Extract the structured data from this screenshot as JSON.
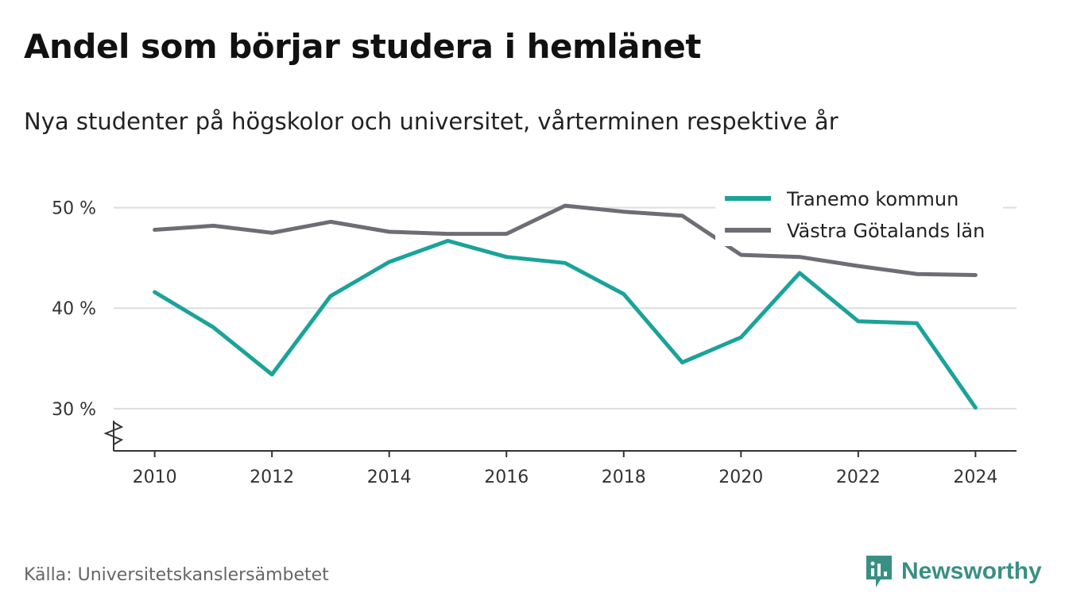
{
  "title": "Andel som börjar studera i hemlänet",
  "subtitle": "Nya studenter på högskolor och universitet, vårterminen respektive år",
  "source": "Källa: Universitetskanslersämbetet",
  "brand": "Newsworthy",
  "colors": {
    "series1": "#1aa39a",
    "series2": "#6e6d75",
    "grid": "#dddddd",
    "axis": "#333333",
    "brand": "#3a8f84"
  },
  "chart_data": {
    "type": "line",
    "x": [
      2010,
      2011,
      2012,
      2013,
      2014,
      2015,
      2016,
      2017,
      2018,
      2019,
      2020,
      2021,
      2022,
      2023,
      2024
    ],
    "xticks": [
      2010,
      2012,
      2014,
      2016,
      2018,
      2020,
      2022,
      2024
    ],
    "xtick_labels": [
      "2010",
      "2012",
      "2014",
      "2016",
      "2018",
      "2020",
      "2022",
      "2024"
    ],
    "yticks": [
      30,
      40,
      50
    ],
    "ytick_labels": [
      "30 %",
      "40 %",
      "50 %"
    ],
    "ylim": [
      25.8,
      52.5
    ],
    "xlim": [
      2009.3,
      2024.7
    ],
    "grid": true,
    "axis_break": true,
    "legend_position": "top-right",
    "series": [
      {
        "name": "Tranemo kommun",
        "color": "#1aa39a",
        "values": [
          41.6,
          38.1,
          33.4,
          41.2,
          44.6,
          46.7,
          45.1,
          44.5,
          41.4,
          34.6,
          37.1,
          43.5,
          38.7,
          38.5,
          30.1
        ]
      },
      {
        "name": "Västra Götalands län",
        "color": "#6e6d75",
        "values": [
          47.8,
          48.2,
          47.5,
          48.6,
          47.6,
          47.4,
          47.4,
          50.2,
          49.6,
          49.2,
          45.3,
          45.1,
          44.2,
          43.4,
          43.3
        ]
      }
    ]
  }
}
